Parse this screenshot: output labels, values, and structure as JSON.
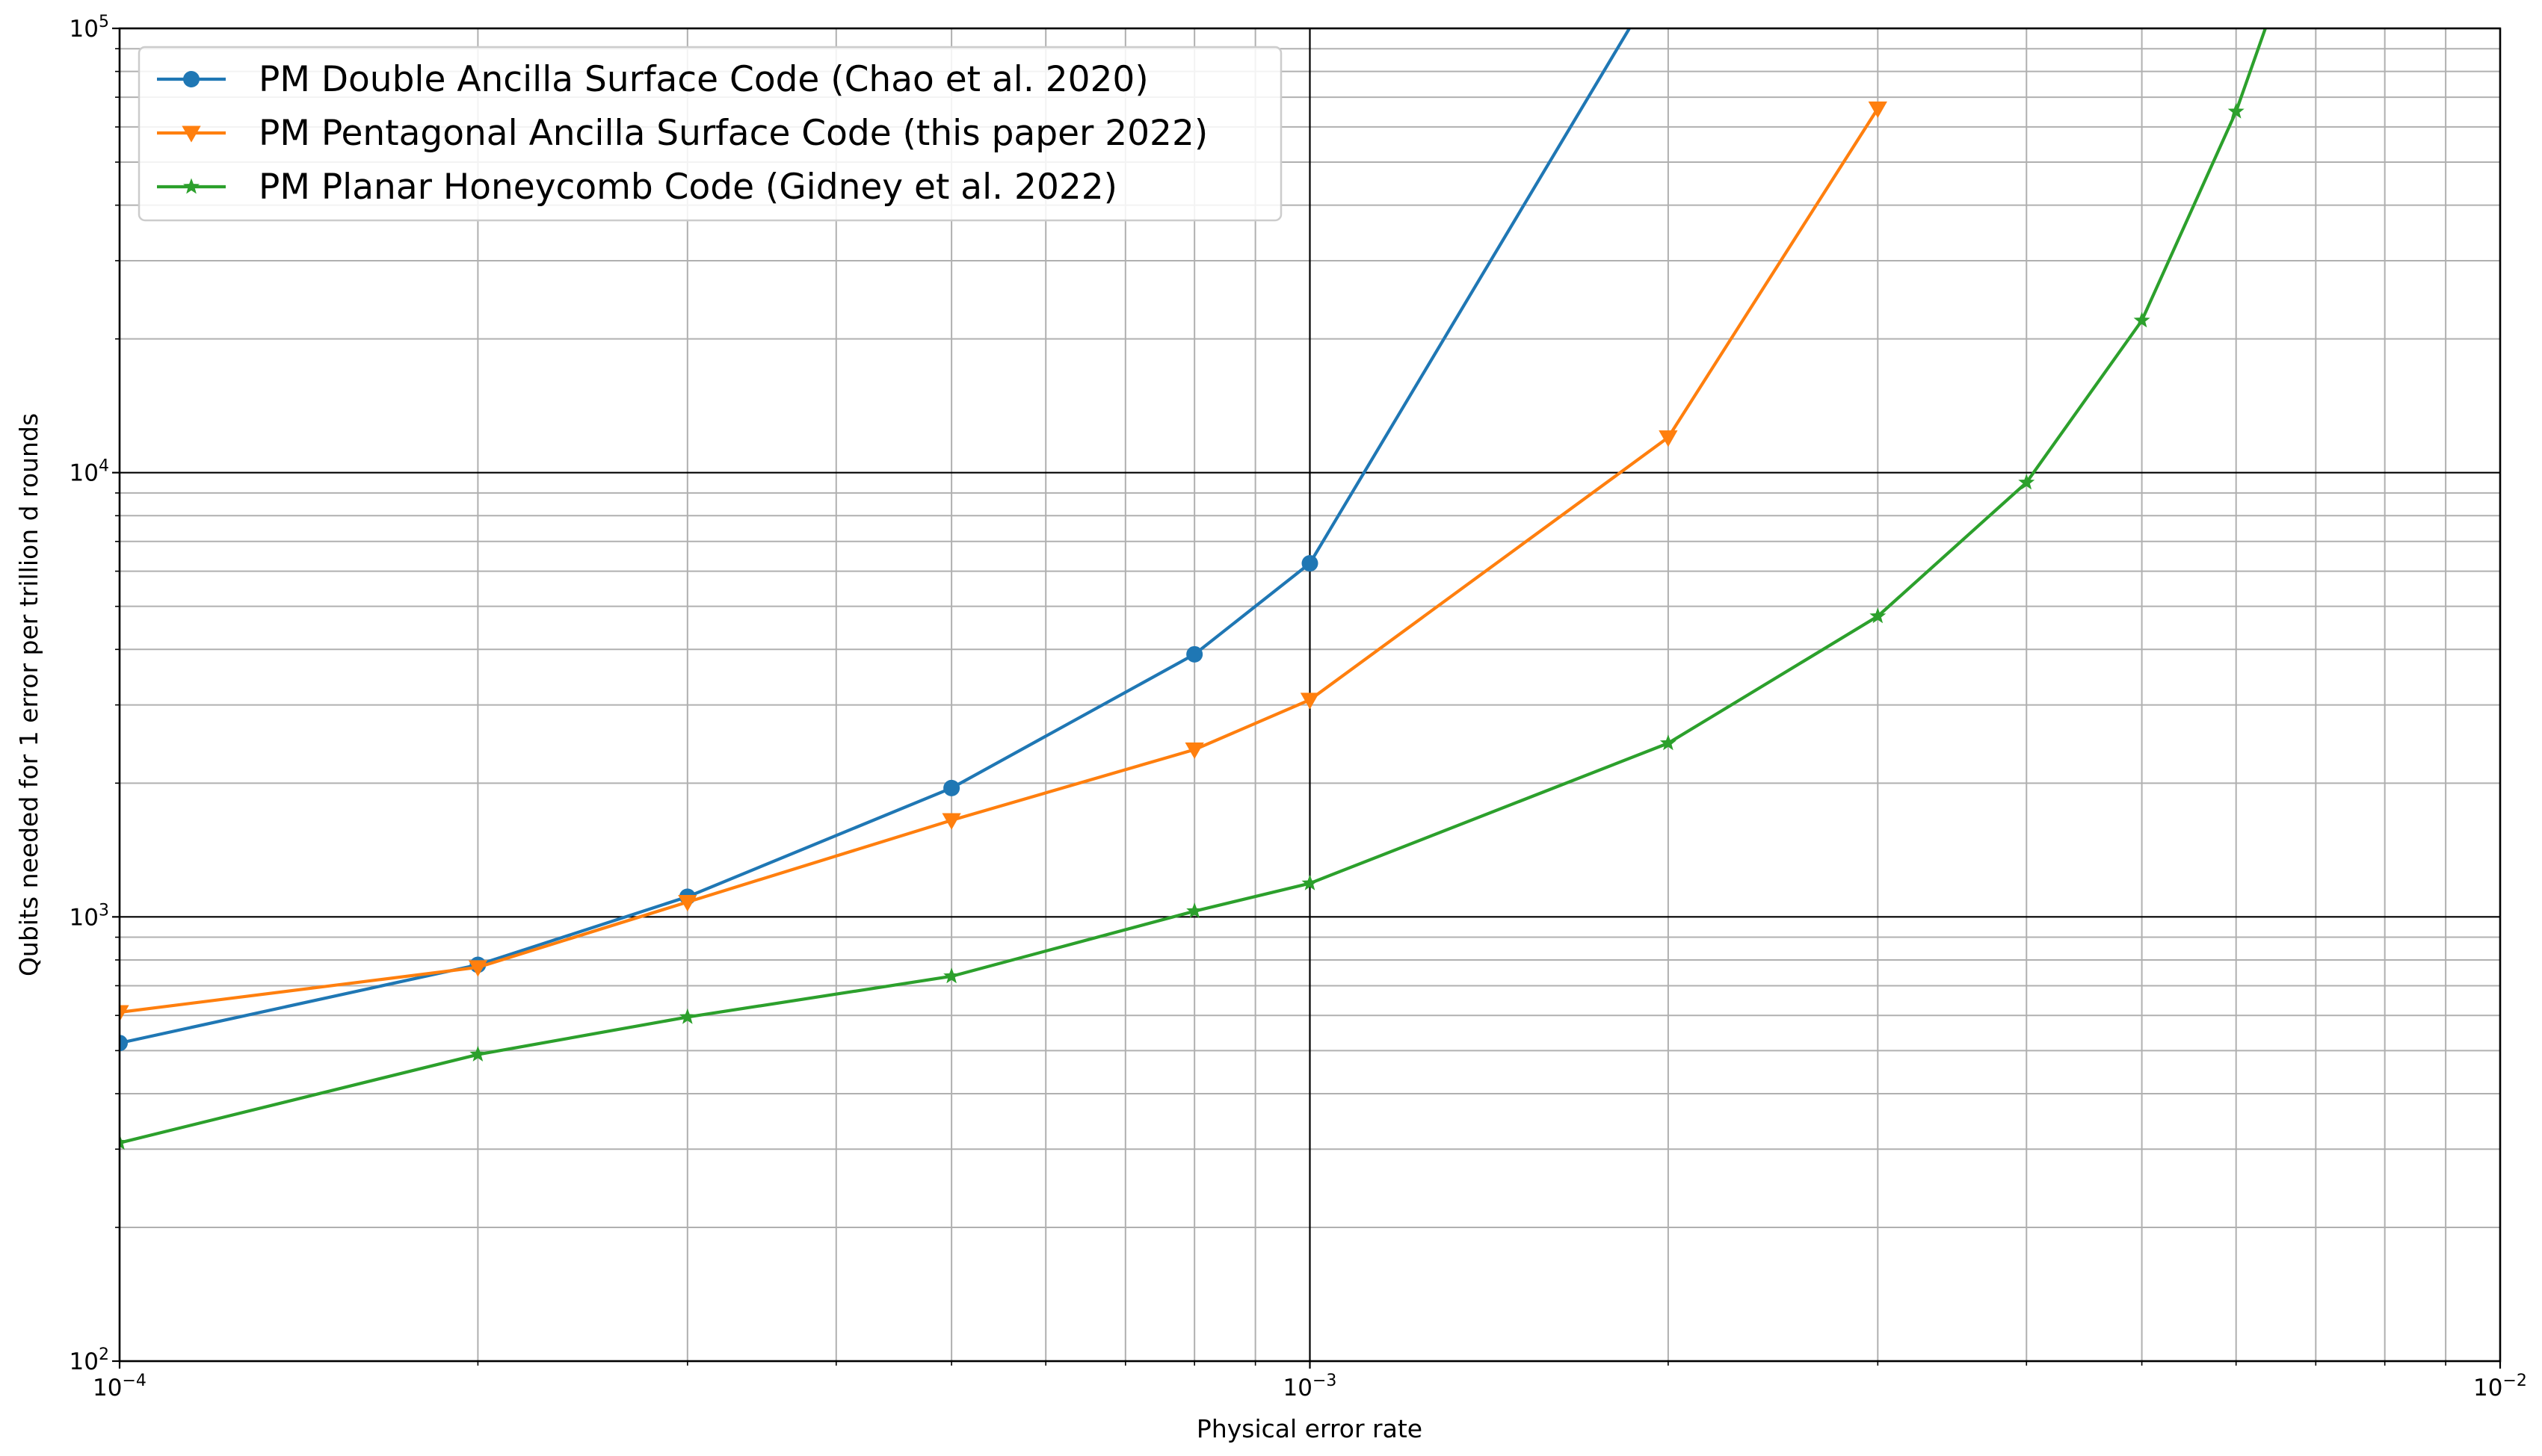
{
  "chart_data": {
    "type": "line",
    "title": "",
    "xlabel": "Physical error rate",
    "ylabel": "Qubits needed for 1 error per trillion d rounds",
    "xscale": "log",
    "yscale": "log",
    "xlim": [
      0.0001,
      0.01
    ],
    "ylim": [
      100,
      100000
    ],
    "grid": "major and minor",
    "legend_position": "upper left",
    "x_tick_labels": [
      {
        "base": "10",
        "exp": "−4"
      },
      {
        "base": "10",
        "exp": "−3"
      },
      {
        "base": "10",
        "exp": "−2"
      }
    ],
    "y_tick_labels": [
      {
        "base": "10",
        "exp": "2"
      },
      {
        "base": "10",
        "exp": "3"
      },
      {
        "base": "10",
        "exp": "4"
      },
      {
        "base": "10",
        "exp": "5"
      }
    ],
    "series": [
      {
        "name": "PM Double Ancilla Surface Code (Chao et al. 2020)",
        "color": "#1f77b4",
        "marker": "circle",
        "x": [
          0.0001,
          0.0002,
          0.0003,
          0.0005,
          0.0008,
          0.001,
          0.002
        ],
        "y": [
          520,
          780,
          1110,
          1950,
          3900,
          6250,
          140000
        ]
      },
      {
        "name": "PM Pentagonal Ancilla Surface Code (this paper 2022)",
        "color": "#ff7f0e",
        "marker": "triangle-down",
        "x": [
          0.0001,
          0.0002,
          0.0003,
          0.0005,
          0.0008,
          0.001,
          0.002,
          0.003
        ],
        "y": [
          610,
          770,
          1080,
          1650,
          2380,
          3080,
          12000,
          66000
        ]
      },
      {
        "name": "PM Planar Honeycomb Code (Gidney et al. 2022)",
        "color": "#2ca02c",
        "marker": "star",
        "x": [
          0.0001,
          0.0002,
          0.0003,
          0.0005,
          0.0008,
          0.001,
          0.002,
          0.003,
          0.004,
          0.005,
          0.006,
          0.007
        ],
        "y": [
          310,
          490,
          595,
          735,
          1030,
          1190,
          2460,
          4750,
          9500,
          22000,
          65000,
          210000
        ]
      }
    ]
  }
}
